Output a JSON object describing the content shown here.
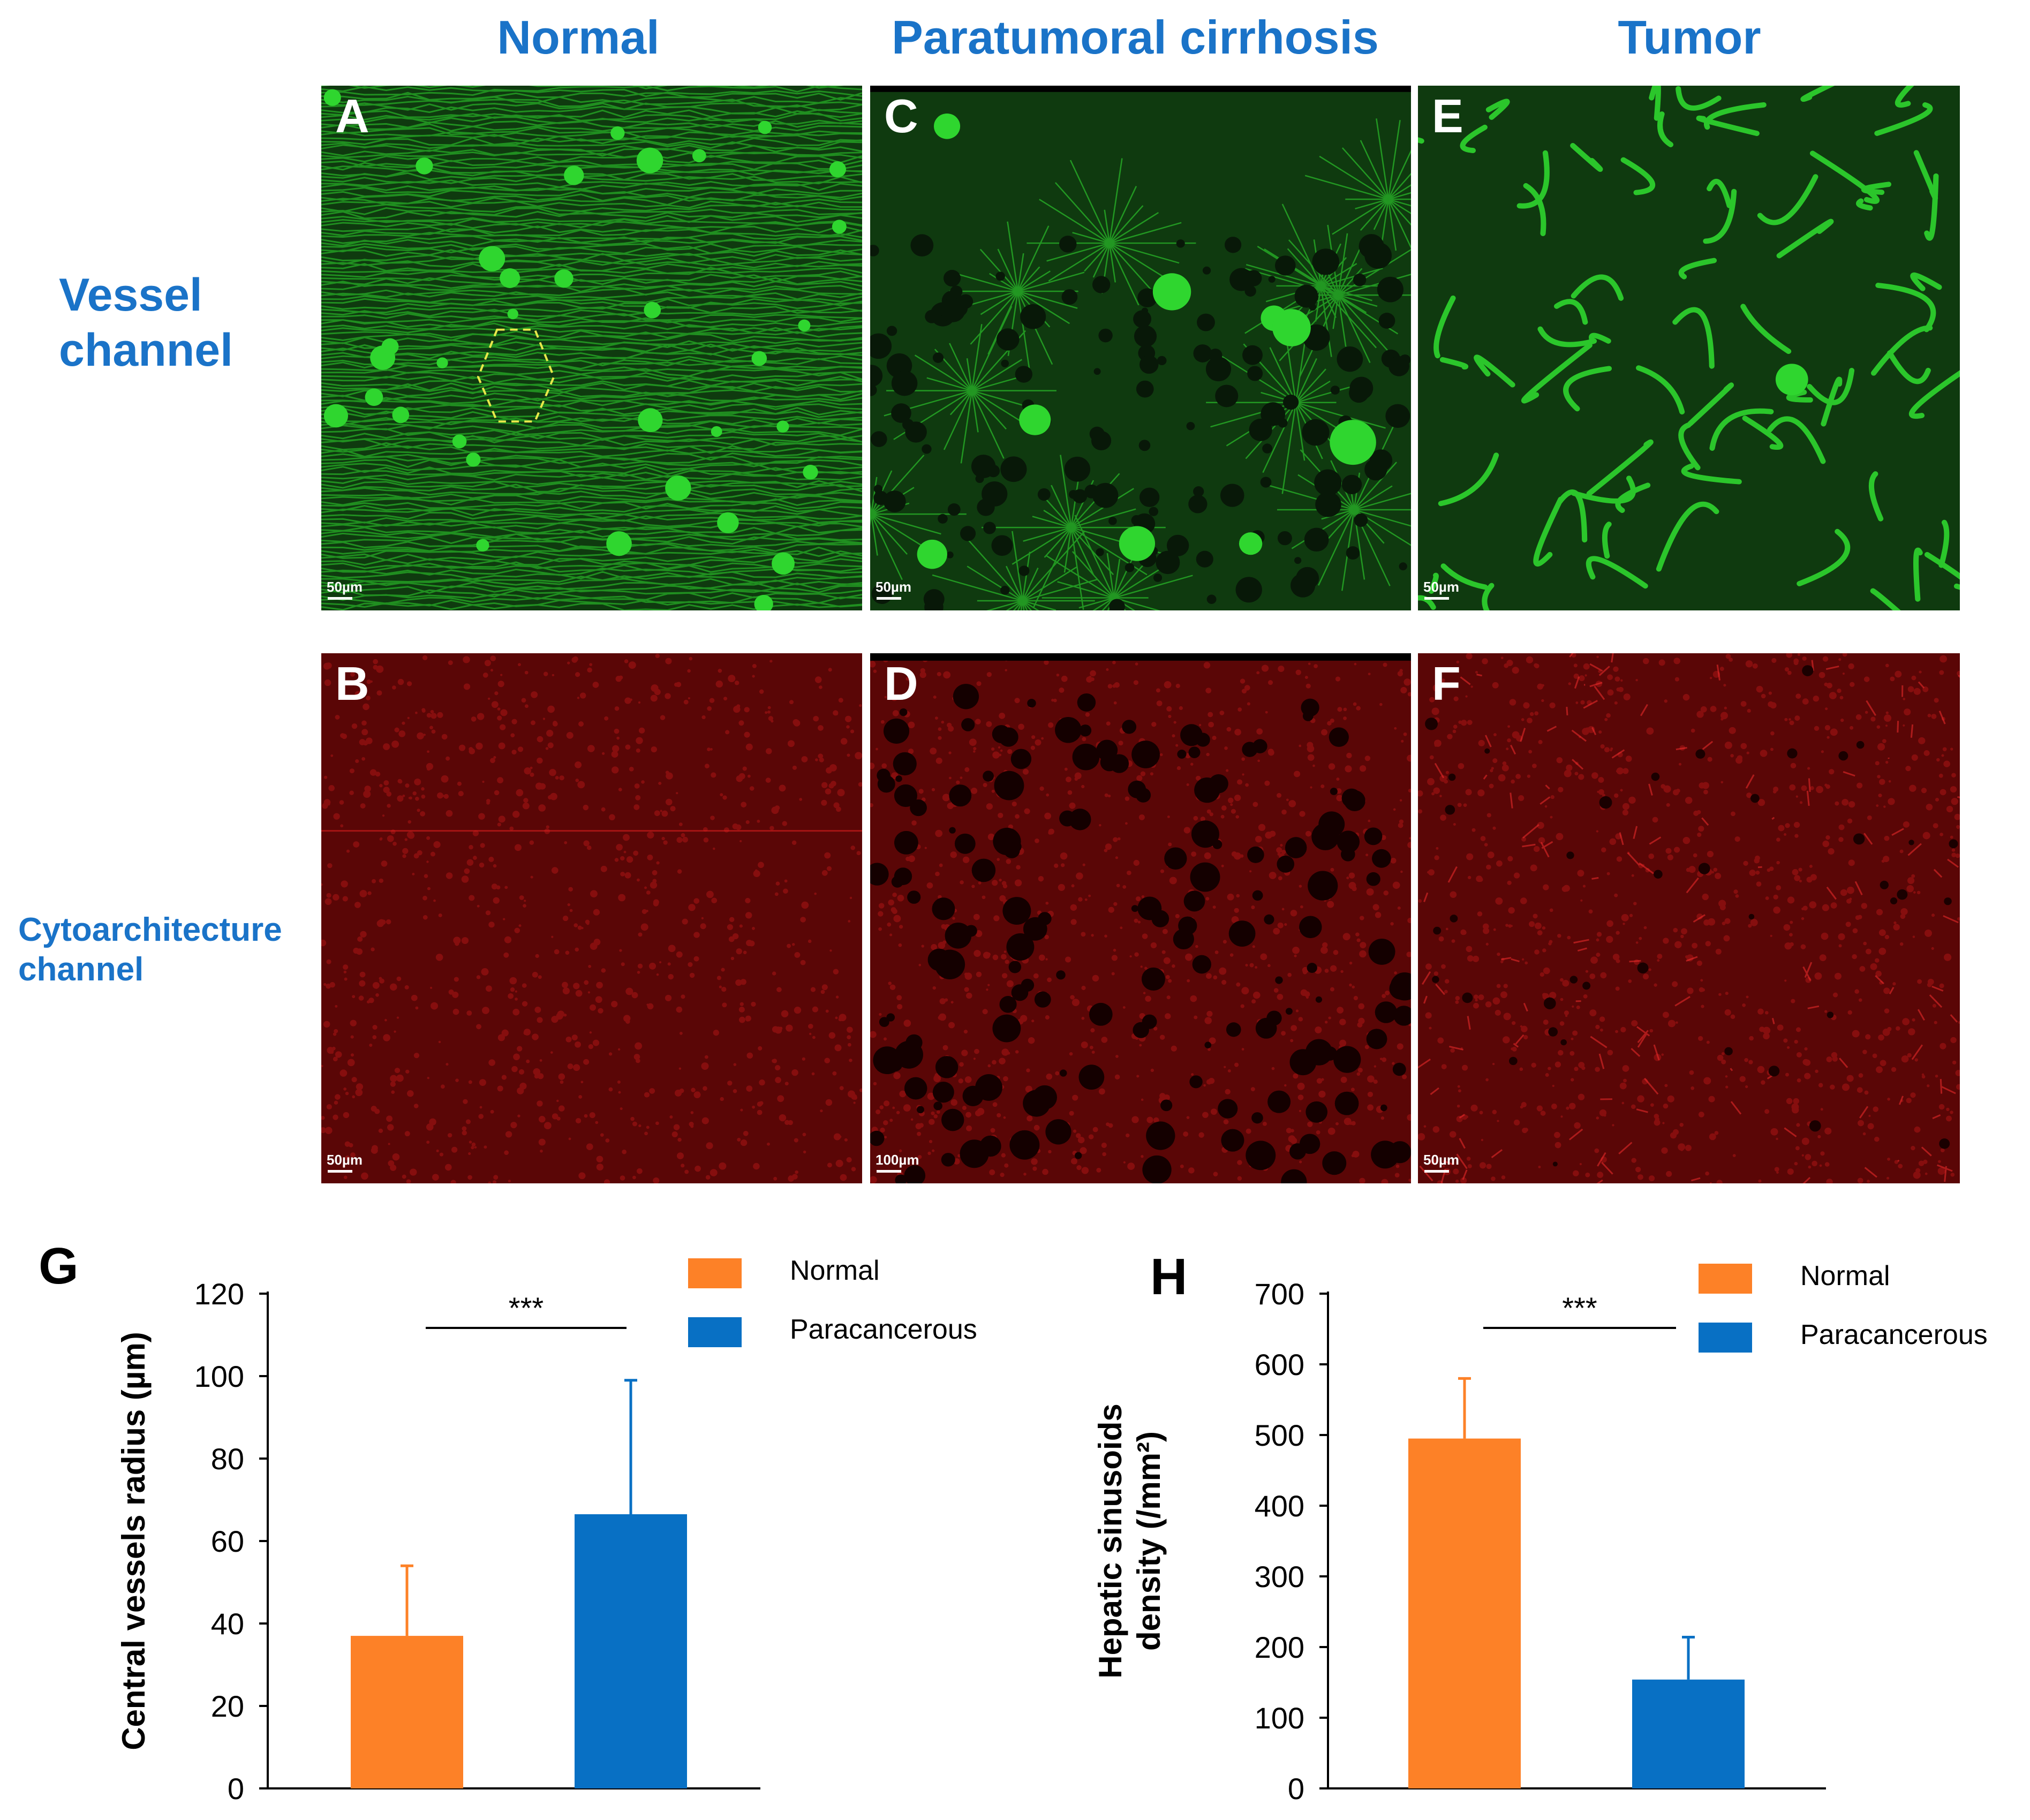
{
  "columns": [
    "Normal",
    "Paratumoral cirrhosis",
    "Tumor"
  ],
  "rows": [
    "Vessel channel",
    "Cytoarchitecture channel"
  ],
  "panels": [
    {
      "letter": "A",
      "scale": "50µm",
      "channel": "vessel",
      "tissue": "normal"
    },
    {
      "letter": "C",
      "scale": "50µm",
      "channel": "vessel",
      "tissue": "cirrhosis"
    },
    {
      "letter": "E",
      "scale": "50µm",
      "channel": "vessel",
      "tissue": "tumor"
    },
    {
      "letter": "B",
      "scale": "50µm",
      "channel": "cyto",
      "tissue": "normal"
    },
    {
      "letter": "D",
      "scale": "100µm",
      "channel": "cyto",
      "tissue": "cirrhosis"
    },
    {
      "letter": "F",
      "scale": "50µm",
      "channel": "cyto",
      "tissue": "tumor"
    }
  ],
  "colors": {
    "heading": "#1a73c8",
    "vessel_bg": "#0f3a0f",
    "vessel": "#2fd62f",
    "cyto_bg": "#5a0606",
    "cyto": "#d81e1e",
    "normal": "#fd8127",
    "paracancerous": "#0870c4"
  },
  "chart_data": [
    {
      "panel": "G",
      "type": "bar",
      "categories": [
        "Normal",
        "Paracancerous"
      ],
      "values": [
        37,
        66.5
      ],
      "errors": [
        17,
        32.5
      ],
      "ylabel": "Central vessels radius (µm)",
      "ylim": [
        0,
        120
      ],
      "yticks": [
        0,
        20,
        40,
        60,
        80,
        100,
        120
      ],
      "significance": "***",
      "legend": [
        "Normal",
        "Paracancerous"
      ],
      "legend_position": "top-right"
    },
    {
      "panel": "H",
      "type": "bar",
      "categories": [
        "Normal",
        "Paracancerous"
      ],
      "values": [
        495,
        154
      ],
      "errors": [
        85,
        60
      ],
      "ylabel": "Hepatic sinusoids density (/mm²)",
      "ylim": [
        0,
        700
      ],
      "yticks": [
        0,
        100,
        200,
        300,
        400,
        500,
        600,
        700
      ],
      "significance": "***",
      "legend": [
        "Normal",
        "Paracancerous"
      ],
      "legend_position": "top-right"
    }
  ]
}
